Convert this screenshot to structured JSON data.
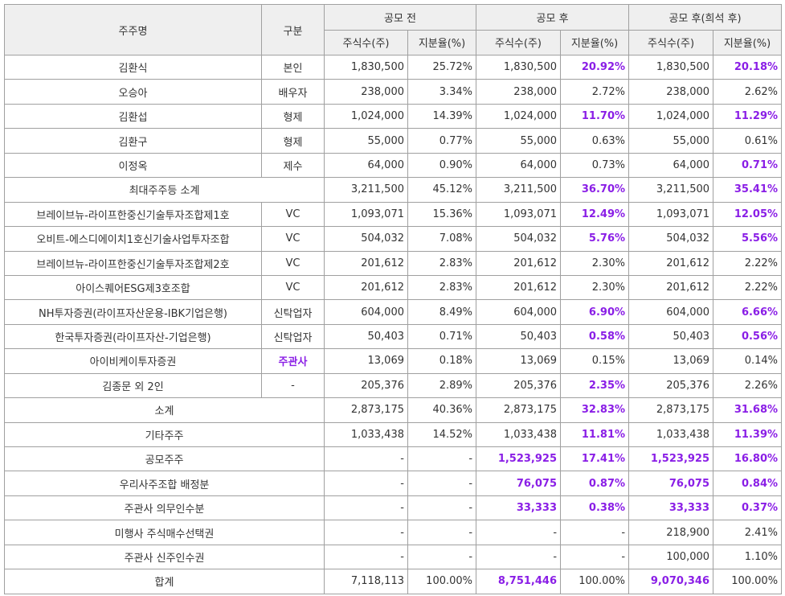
{
  "highlight_color": "#8a1ee6",
  "header": {
    "shareholder": "주주명",
    "category": "구분",
    "groups": [
      "공모 전",
      "공모 후",
      "공모 후(희석 후)"
    ],
    "sub": [
      "주식수(주)",
      "지분율(%)",
      "주식수(주)",
      "지분율(%)",
      "주식수(주)",
      "지분율(%)"
    ]
  },
  "table": {
    "rows": [
      [
        "김환식",
        "본인",
        "1,830,500",
        "25.72%",
        "1,830,500",
        {
          "text": "20.92%",
          "highlight": true
        },
        "1,830,500",
        {
          "text": "20.18%",
          "highlight": true
        }
      ],
      [
        "오승아",
        "배우자",
        "238,000",
        "3.34%",
        "238,000",
        "2.72%",
        "238,000",
        "2.62%"
      ],
      [
        "김환섭",
        "형제",
        "1,024,000",
        "14.39%",
        "1,024,000",
        {
          "text": "11.70%",
          "highlight": true
        },
        "1,024,000",
        {
          "text": "11.29%",
          "highlight": true
        }
      ],
      [
        "김환구",
        "형제",
        "55,000",
        "0.77%",
        "55,000",
        "0.63%",
        "55,000",
        "0.61%"
      ],
      [
        "이정옥",
        "제수",
        "64,000",
        "0.90%",
        "64,000",
        "0.73%",
        "64,000",
        {
          "text": "0.71%",
          "highlight": true
        }
      ],
      [
        "최대주주등 소계",
        "3,211,500",
        "45.12%",
        "3,211,500",
        {
          "text": "36.70%",
          "highlight": true
        },
        "3,211,500",
        {
          "text": "35.41%",
          "highlight": true
        }
      ],
      [
        "브레이브뉴-라이프한중신기술투자조합제1호",
        "VC",
        "1,093,071",
        "15.36%",
        "1,093,071",
        {
          "text": "12.49%",
          "highlight": true
        },
        "1,093,071",
        {
          "text": "12.05%",
          "highlight": true
        }
      ],
      [
        "오비트-에스디에이치1호신기술사업투자조합",
        "VC",
        "504,032",
        "7.08%",
        "504,032",
        {
          "text": "5.76%",
          "highlight": true
        },
        "504,032",
        {
          "text": "5.56%",
          "highlight": true
        }
      ],
      [
        "브레이브뉴-라이프한중신기술투자조합제2호",
        "VC",
        "201,612",
        "2.83%",
        "201,612",
        "2.30%",
        "201,612",
        "2.22%"
      ],
      [
        "아이스퀘어ESG제3호조합",
        "VC",
        "201,612",
        "2.83%",
        "201,612",
        "2.30%",
        "201,612",
        "2.22%"
      ],
      [
        "NH투자증권(라이프자산운용-IBK기업은행)",
        "신탁업자",
        "604,000",
        "8.49%",
        "604,000",
        {
          "text": "6.90%",
          "highlight": true
        },
        "604,000",
        {
          "text": "6.66%",
          "highlight": true
        }
      ],
      [
        "한국투자증권(라이프자산-기업은행)",
        "신탁업자",
        "50,403",
        "0.71%",
        "50,403",
        {
          "text": "0.58%",
          "highlight": true
        },
        "50,403",
        {
          "text": "0.56%",
          "highlight": true
        }
      ],
      [
        "아이비케이투자증권",
        {
          "text": "주관사",
          "highlight": true
        },
        "13,069",
        "0.18%",
        "13,069",
        "0.15%",
        "13,069",
        "0.14%"
      ],
      [
        "김종문 외 2인",
        "-",
        "205,376",
        "2.89%",
        "205,376",
        {
          "text": "2.35%",
          "highlight": true
        },
        "205,376",
        "2.26%"
      ],
      [
        "소계",
        "2,873,175",
        "40.36%",
        "2,873,175",
        {
          "text": "32.83%",
          "highlight": true
        },
        "2,873,175",
        {
          "text": "31.68%",
          "highlight": true
        }
      ],
      [
        "기타주주",
        "1,033,438",
        "14.52%",
        "1,033,438",
        {
          "text": "11.81%",
          "highlight": true
        },
        "1,033,438",
        {
          "text": "11.39%",
          "highlight": true
        }
      ],
      [
        "공모주주",
        "-",
        "-",
        {
          "text": "1,523,925",
          "highlight": true
        },
        {
          "text": "17.41%",
          "highlight": true
        },
        {
          "text": "1,523,925",
          "highlight": true
        },
        {
          "text": "16.80%",
          "highlight": true
        }
      ],
      [
        "우리사주조합 배정분",
        "-",
        "-",
        {
          "text": "76,075",
          "highlight": true
        },
        {
          "text": "0.87%",
          "highlight": true
        },
        {
          "text": "76,075",
          "highlight": true
        },
        {
          "text": "0.84%",
          "highlight": true
        }
      ],
      [
        "주관사 의무인수분",
        "-",
        "-",
        {
          "text": "33,333",
          "highlight": true
        },
        {
          "text": "0.38%",
          "highlight": true
        },
        {
          "text": "33,333",
          "highlight": true
        },
        {
          "text": "0.37%",
          "highlight": true
        }
      ],
      [
        "미행사 주식매수선택권",
        "-",
        "-",
        "-",
        "-",
        "218,900",
        "2.41%"
      ],
      [
        "주관사 신주인수권",
        "-",
        "-",
        "-",
        "-",
        "100,000",
        "1.10%"
      ],
      [
        "합계",
        "7,118,113",
        "100.00%",
        {
          "text": "8,751,446",
          "highlight": true
        },
        "100.00%",
        {
          "text": "9,070,346",
          "highlight": true
        },
        "100.00%"
      ]
    ]
  }
}
